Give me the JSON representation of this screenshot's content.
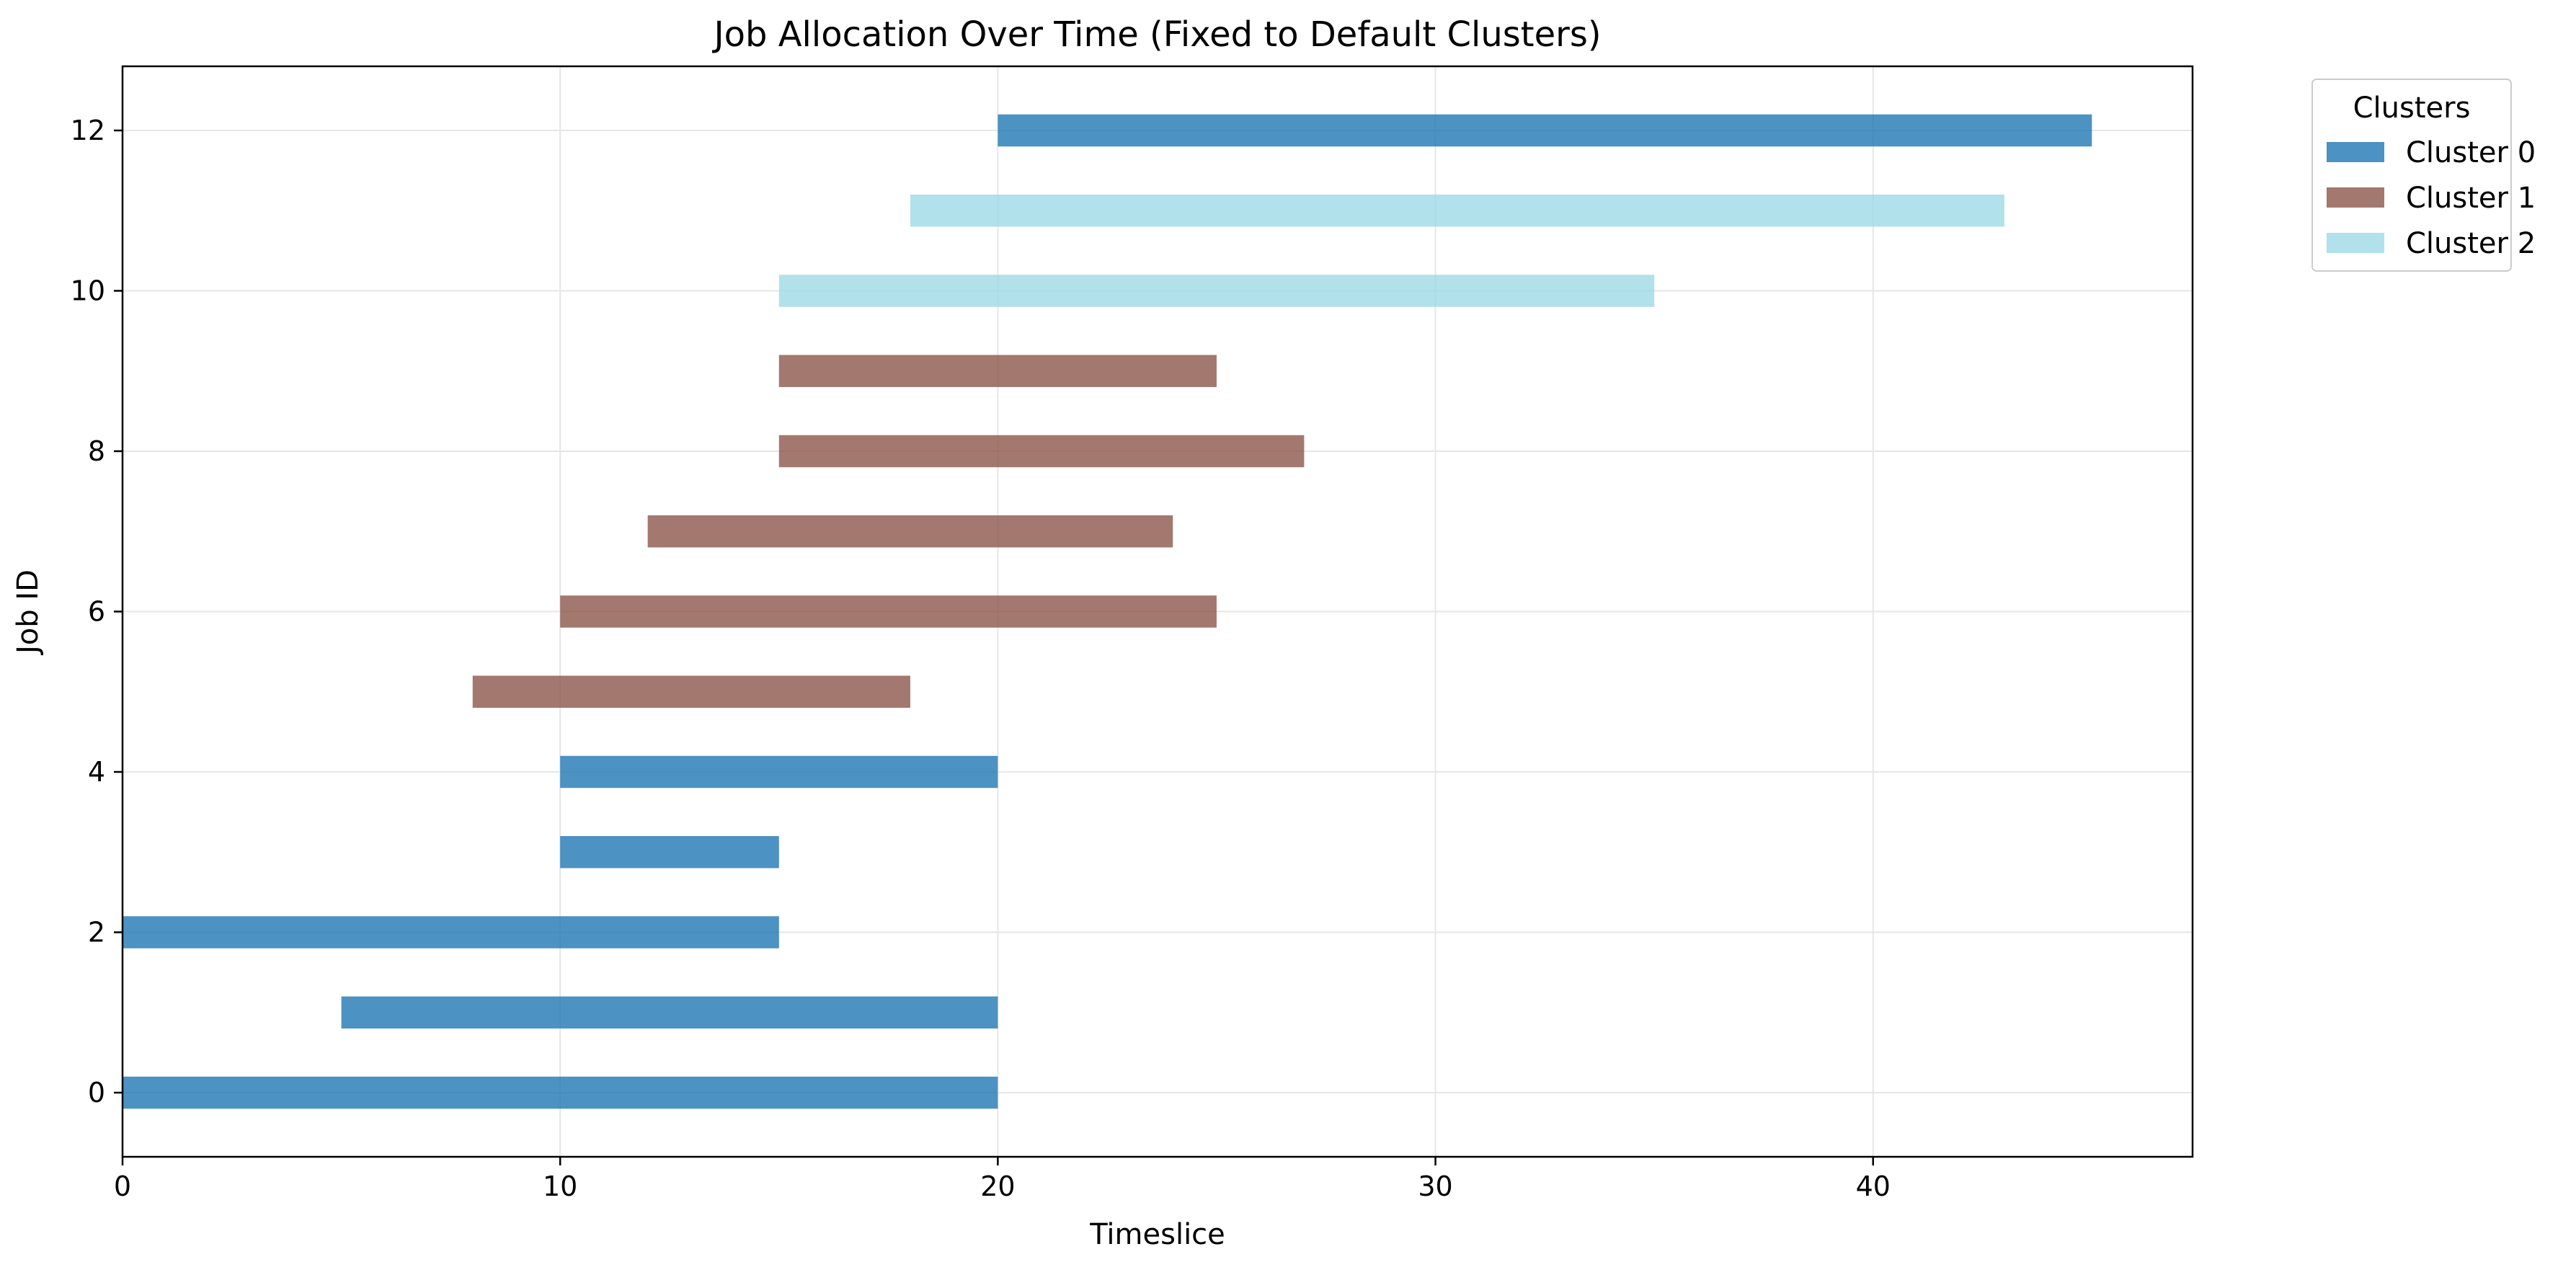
{
  "chart_data": {
    "type": "bar",
    "orientation": "horizontal",
    "title": "Job Allocation Over Time (Fixed to Default Clusters)",
    "xlabel": "Timeslice",
    "ylabel": "Job ID",
    "xlim": [
      0,
      47.3
    ],
    "ylim": [
      -0.8,
      12.8
    ],
    "xticks": [
      0,
      10,
      20,
      30,
      40
    ],
    "yticks": [
      0,
      2,
      4,
      6,
      8,
      10,
      12
    ],
    "grid": true,
    "legend": {
      "title": "Clusters",
      "placement": "outside-top-right",
      "entries": [
        {
          "label": "Cluster 0",
          "color": "#1f77b4"
        },
        {
          "label": "Cluster 1",
          "color": "#8c564b"
        },
        {
          "label": "Cluster 2",
          "color": "#9edae5"
        }
      ]
    },
    "bar_opacity": 0.8,
    "jobs": [
      {
        "job": 0,
        "start": 0,
        "end": 20,
        "cluster": 0
      },
      {
        "job": 1,
        "start": 5,
        "end": 20,
        "cluster": 0
      },
      {
        "job": 2,
        "start": 0,
        "end": 15,
        "cluster": 0
      },
      {
        "job": 3,
        "start": 10,
        "end": 15,
        "cluster": 0
      },
      {
        "job": 4,
        "start": 10,
        "end": 20,
        "cluster": 0
      },
      {
        "job": 5,
        "start": 8,
        "end": 18,
        "cluster": 1
      },
      {
        "job": 6,
        "start": 10,
        "end": 25,
        "cluster": 1
      },
      {
        "job": 7,
        "start": 12,
        "end": 24,
        "cluster": 1
      },
      {
        "job": 8,
        "start": 15,
        "end": 27,
        "cluster": 1
      },
      {
        "job": 9,
        "start": 15,
        "end": 25,
        "cluster": 1
      },
      {
        "job": 10,
        "start": 15,
        "end": 35,
        "cluster": 2
      },
      {
        "job": 11,
        "start": 18,
        "end": 43,
        "cluster": 2
      },
      {
        "job": 12,
        "start": 20,
        "end": 45,
        "cluster": 0
      }
    ]
  }
}
